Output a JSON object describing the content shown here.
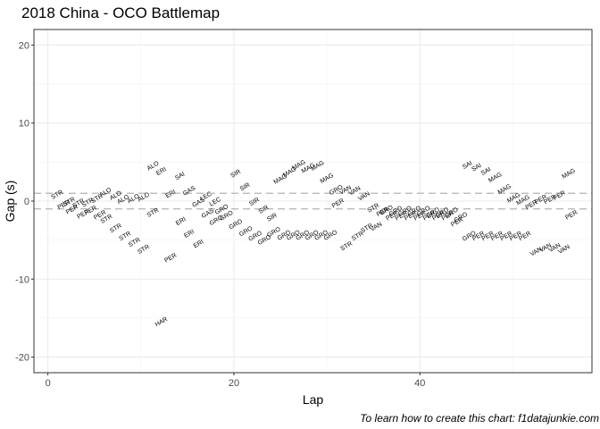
{
  "caption": "To learn how to create this chart: f1datajunkie.com",
  "chart_data": {
    "type": "scatter",
    "title": "2018 China - OCO Battlemap",
    "xlabel": "Lap",
    "ylabel": "Gap (s)",
    "xlim": [
      -1.5,
      58.5
    ],
    "ylim": [
      -22,
      22
    ],
    "x_ticks": [
      0,
      20,
      40
    ],
    "y_ticks": [
      -20,
      -10,
      0,
      10,
      20
    ],
    "grid": true,
    "label_rotation_deg": 30,
    "reference_lines": [
      {
        "y": 1,
        "style": "dashed",
        "color": "#b3b3b3"
      },
      {
        "y": -1,
        "style": "dashed",
        "color": "#b3b3b3"
      }
    ],
    "points": [
      {
        "x": 1,
        "y": 0.8,
        "label": "STR"
      },
      {
        "x": 1.7,
        "y": -0.5,
        "label": "PER"
      },
      {
        "x": 2.3,
        "y": -0.1,
        "label": "STR"
      },
      {
        "x": 2.6,
        "y": -1.1,
        "label": "PER"
      },
      {
        "x": 3.3,
        "y": -0.3,
        "label": "STR"
      },
      {
        "x": 3.8,
        "y": -1.7,
        "label": "PER"
      },
      {
        "x": 4.3,
        "y": -0.2,
        "label": "STR"
      },
      {
        "x": 4.6,
        "y": -1.2,
        "label": "PER"
      },
      {
        "x": 5.3,
        "y": 0.3,
        "label": "STR"
      },
      {
        "x": 5.6,
        "y": -1.8,
        "label": "PER"
      },
      {
        "x": 6.2,
        "y": 1.1,
        "label": "ALO"
      },
      {
        "x": 6.3,
        "y": -2.3,
        "label": "STR"
      },
      {
        "x": 7.3,
        "y": 0.7,
        "label": "ALO"
      },
      {
        "x": 7.3,
        "y": -3.5,
        "label": "STR"
      },
      {
        "x": 8.1,
        "y": 0.2,
        "label": "ALO"
      },
      {
        "x": 8.3,
        "y": -4.5,
        "label": "STR"
      },
      {
        "x": 9.2,
        "y": 0.3,
        "label": "ALO"
      },
      {
        "x": 9.3,
        "y": -5.3,
        "label": "STR"
      },
      {
        "x": 10.3,
        "y": 0.5,
        "label": "ALO"
      },
      {
        "x": 10.3,
        "y": -6.2,
        "label": "STR"
      },
      {
        "x": 11.3,
        "y": 4.5,
        "label": "ALO"
      },
      {
        "x": 11.3,
        "y": -1.5,
        "label": "STR"
      },
      {
        "x": 12.2,
        "y": 3.8,
        "label": "ERI"
      },
      {
        "x": 12.2,
        "y": -15.5,
        "label": "HAR"
      },
      {
        "x": 13.2,
        "y": 0.9,
        "label": "ERI"
      },
      {
        "x": 13.2,
        "y": -7.3,
        "label": "PER"
      },
      {
        "x": 14.2,
        "y": 3.2,
        "label": "SAI"
      },
      {
        "x": 14.3,
        "y": -2.6,
        "label": "ERI"
      },
      {
        "x": 15.2,
        "y": 1.3,
        "label": "GAS"
      },
      {
        "x": 15.2,
        "y": -4.2,
        "label": "ERI"
      },
      {
        "x": 16.2,
        "y": -0.2,
        "label": "GAS"
      },
      {
        "x": 16.2,
        "y": -5.5,
        "label": "ERI"
      },
      {
        "x": 17,
        "y": 0.6,
        "label": "LEC"
      },
      {
        "x": 17.2,
        "y": -1.6,
        "label": "GAS"
      },
      {
        "x": 18,
        "y": -0.1,
        "label": "LEC"
      },
      {
        "x": 18.1,
        "y": -2.5,
        "label": "GRO"
      },
      {
        "x": 18.7,
        "y": -1.1,
        "label": "GRO"
      },
      {
        "x": 19.2,
        "y": -1.9,
        "label": "GRO"
      },
      {
        "x": 20.2,
        "y": 3.5,
        "label": "SIR"
      },
      {
        "x": 20.2,
        "y": -3,
        "label": "GRO"
      },
      {
        "x": 21.2,
        "y": 1.8,
        "label": "SIR"
      },
      {
        "x": 21.3,
        "y": -3.9,
        "label": "GRO"
      },
      {
        "x": 22.2,
        "y": -0.1,
        "label": "SIR"
      },
      {
        "x": 22.3,
        "y": -4.5,
        "label": "GRO"
      },
      {
        "x": 23.2,
        "y": -1.1,
        "label": "SIR"
      },
      {
        "x": 23.3,
        "y": -5,
        "label": "GRO"
      },
      {
        "x": 24.1,
        "y": -2.1,
        "label": "SIR"
      },
      {
        "x": 24.3,
        "y": -4,
        "label": "GRO"
      },
      {
        "x": 25,
        "y": 2.8,
        "label": "MAG"
      },
      {
        "x": 25.4,
        "y": -4.4,
        "label": "GRO"
      },
      {
        "x": 26,
        "y": 3.7,
        "label": "MAG"
      },
      {
        "x": 26.4,
        "y": -4.4,
        "label": "GRO"
      },
      {
        "x": 27,
        "y": 4.6,
        "label": "MAG"
      },
      {
        "x": 27.4,
        "y": -4.4,
        "label": "GRO"
      },
      {
        "x": 28,
        "y": 4.2,
        "label": "MAG"
      },
      {
        "x": 28.4,
        "y": -4.4,
        "label": "GRO"
      },
      {
        "x": 29,
        "y": 4.5,
        "label": "MAG"
      },
      {
        "x": 29.4,
        "y": -4.4,
        "label": "GRO"
      },
      {
        "x": 30,
        "y": 2.9,
        "label": "MAG"
      },
      {
        "x": 30.4,
        "y": -4.4,
        "label": "GRO"
      },
      {
        "x": 31,
        "y": 1.4,
        "label": "GRO"
      },
      {
        "x": 31.2,
        "y": -0.3,
        "label": "PER"
      },
      {
        "x": 32,
        "y": 1.4,
        "label": "VAN"
      },
      {
        "x": 32.1,
        "y": -5.8,
        "label": "STR"
      },
      {
        "x": 33,
        "y": 1.3,
        "label": "VAN"
      },
      {
        "x": 33.3,
        "y": -4.5,
        "label": "STR"
      },
      {
        "x": 34,
        "y": 0.6,
        "label": "VAN"
      },
      {
        "x": 34.3,
        "y": -3.5,
        "label": "STR"
      },
      {
        "x": 35,
        "y": -0.9,
        "label": "STR"
      },
      {
        "x": 35.3,
        "y": -3.3,
        "label": "VAN"
      },
      {
        "x": 36,
        "y": -1.4,
        "label": "PER"
      },
      {
        "x": 36.4,
        "y": -1.2,
        "label": "GRO"
      },
      {
        "x": 37,
        "y": -1.9,
        "label": "PER"
      },
      {
        "x": 37.4,
        "y": -1.3,
        "label": "GRO"
      },
      {
        "x": 38,
        "y": -1.9,
        "label": "PER"
      },
      {
        "x": 38.4,
        "y": -1.3,
        "label": "GRO"
      },
      {
        "x": 39,
        "y": -1.9,
        "label": "PER"
      },
      {
        "x": 39.4,
        "y": -1.3,
        "label": "GRO"
      },
      {
        "x": 40,
        "y": -1.9,
        "label": "PER"
      },
      {
        "x": 40.4,
        "y": -1.3,
        "label": "GRO"
      },
      {
        "x": 41,
        "y": -1.9,
        "label": "PER"
      },
      {
        "x": 41.4,
        "y": -1.5,
        "label": "GRO"
      },
      {
        "x": 42,
        "y": -1.9,
        "label": "PER"
      },
      {
        "x": 42.4,
        "y": -1.5,
        "label": "GRO"
      },
      {
        "x": 43,
        "y": -1.9,
        "label": "PER"
      },
      {
        "x": 43.4,
        "y": -1.5,
        "label": "GRO"
      },
      {
        "x": 44,
        "y": -2.7,
        "label": "PER"
      },
      {
        "x": 44.4,
        "y": -2.1,
        "label": "GRO"
      },
      {
        "x": 45.1,
        "y": 4.6,
        "label": "SAI"
      },
      {
        "x": 45.3,
        "y": -4.5,
        "label": "GRO"
      },
      {
        "x": 46.1,
        "y": 4.3,
        "label": "SAI"
      },
      {
        "x": 46.3,
        "y": -4.5,
        "label": "PER"
      },
      {
        "x": 47.1,
        "y": 3.8,
        "label": "SAI"
      },
      {
        "x": 47.3,
        "y": -4.5,
        "label": "PER"
      },
      {
        "x": 48.1,
        "y": 3,
        "label": "MAG"
      },
      {
        "x": 48.3,
        "y": -4.5,
        "label": "PER"
      },
      {
        "x": 49.1,
        "y": 1.5,
        "label": "MAG"
      },
      {
        "x": 49.3,
        "y": -4.5,
        "label": "PER"
      },
      {
        "x": 50.1,
        "y": 0.4,
        "label": "MAG"
      },
      {
        "x": 50.3,
        "y": -4.5,
        "label": "PER"
      },
      {
        "x": 51.1,
        "y": 0.1,
        "label": "MAG"
      },
      {
        "x": 51.3,
        "y": -4.5,
        "label": "PER"
      },
      {
        "x": 52,
        "y": -0.5,
        "label": "PER"
      },
      {
        "x": 52.5,
        "y": -6.5,
        "label": "VAN"
      },
      {
        "x": 53,
        "y": 0.2,
        "label": "PER"
      },
      {
        "x": 53.5,
        "y": -6,
        "label": "VAN"
      },
      {
        "x": 54,
        "y": 0.2,
        "label": "PER"
      },
      {
        "x": 54.5,
        "y": -6,
        "label": "VAN"
      },
      {
        "x": 55,
        "y": 0.7,
        "label": "PER"
      },
      {
        "x": 55.5,
        "y": -6.2,
        "label": "VAN"
      },
      {
        "x": 56,
        "y": 3.5,
        "label": "MAG"
      },
      {
        "x": 56.3,
        "y": -1.8,
        "label": "PER"
      }
    ]
  }
}
